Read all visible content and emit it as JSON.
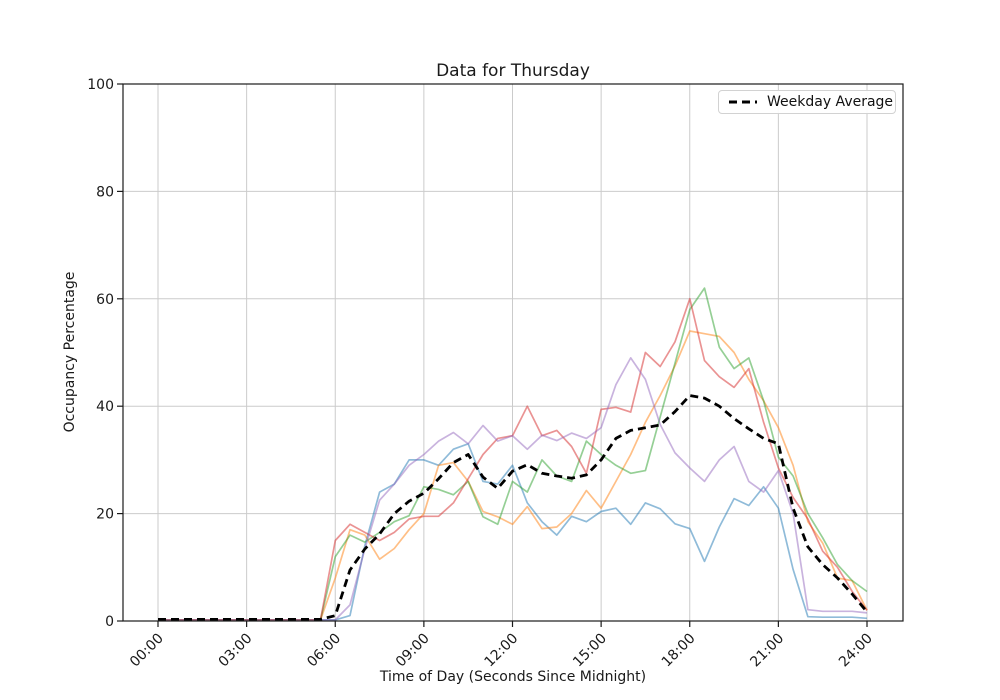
{
  "figure": {
    "title": "Data for Thursday",
    "x_axis": {
      "label": "Time of Day (Seconds Since Midnight)",
      "tick_hours": [
        0,
        3,
        6,
        9,
        12,
        15,
        18,
        21,
        24
      ],
      "tick_labels": [
        "00:00",
        "03:00",
        "06:00",
        "09:00",
        "12:00",
        "15:00",
        "18:00",
        "21:00",
        "24:00"
      ],
      "tick_rotation_deg": 45
    },
    "y_axis": {
      "label": "Occupancy Percentage",
      "ticks": [
        0,
        20,
        40,
        60,
        80,
        100
      ],
      "range": [
        0,
        100
      ]
    },
    "legend": {
      "entries": [
        {
          "label": "Weekday Average",
          "line_style": "dashed",
          "color": "#000000"
        }
      ],
      "position": "upper right"
    },
    "style_colors": {
      "grid": "#cbcbcb",
      "spine": "#1a1a1a",
      "background": "#ffffff"
    }
  },
  "chart_data": {
    "type": "line",
    "title": "Data for Thursday",
    "xlabel": "Time of Day (Seconds Since Midnight)",
    "ylabel": "Occupancy Percentage",
    "xlim_hours": [
      0,
      24
    ],
    "ylim": [
      0,
      100
    ],
    "grid": true,
    "legend_position": "upper right",
    "sample_interval_minutes": 30,
    "x_hours": [
      0,
      0.5,
      1,
      1.5,
      2,
      2.5,
      3,
      3.5,
      4,
      4.5,
      5,
      5.5,
      6,
      6.5,
      7,
      7.5,
      8,
      8.5,
      9,
      9.5,
      10,
      10.5,
      11,
      11.5,
      12,
      12.5,
      13,
      13.5,
      14,
      14.5,
      15,
      15.5,
      16,
      16.5,
      17,
      17.5,
      18,
      18.5,
      19,
      19.5,
      20,
      20.5,
      21,
      21.5,
      22,
      22.5,
      23,
      23.5,
      24
    ],
    "series": [
      {
        "name": "unlabeled-day-blue",
        "color": "#1f77b4",
        "opacity": 0.5,
        "dash": "solid",
        "width": 1.7,
        "values": [
          0.2,
          0.2,
          0.2,
          0.2,
          0.2,
          0.2,
          0.2,
          0.2,
          0.2,
          0.2,
          0.2,
          0.2,
          0.2,
          1,
          14,
          24,
          25.5,
          30,
          30,
          29,
          32,
          33,
          26,
          25.5,
          29,
          22,
          18.5,
          16,
          19.5,
          18.5,
          20.4,
          21,
          18,
          22,
          20.9,
          18.1,
          17.2,
          11.1,
          17.5,
          22.8,
          21.5,
          25,
          21,
          9.6,
          0.8,
          0.7,
          0.7,
          0.7,
          0.5
        ]
      },
      {
        "name": "unlabeled-day-orange",
        "color": "#ff7f0e",
        "opacity": 0.5,
        "dash": "solid",
        "width": 1.7,
        "values": [
          0.2,
          0.2,
          0.2,
          0.2,
          0.2,
          0.2,
          0.2,
          0.2,
          0.2,
          0.2,
          0.2,
          0.2,
          8,
          17,
          16,
          11.5,
          13.5,
          17,
          20,
          29,
          29.5,
          26,
          20.4,
          19.4,
          18,
          21.3,
          17.2,
          17.5,
          20,
          24.3,
          21,
          26,
          31,
          37,
          42,
          47.5,
          54,
          53.5,
          53,
          50,
          45,
          41,
          36,
          29,
          18.5,
          14.5,
          8,
          7.5,
          2
        ]
      },
      {
        "name": "unlabeled-day-green",
        "color": "#2ca02c",
        "opacity": 0.5,
        "dash": "solid",
        "width": 1.7,
        "values": [
          0.2,
          0.2,
          0.2,
          0.2,
          0.2,
          0.2,
          0.2,
          0.2,
          0.2,
          0.2,
          0.2,
          0.2,
          12,
          16,
          14.7,
          16.5,
          18.5,
          19.6,
          25,
          24.5,
          23.5,
          26,
          19.4,
          18,
          26,
          24,
          30,
          27,
          26,
          33.5,
          31,
          29,
          27.5,
          28,
          38,
          48,
          58,
          62,
          51,
          47,
          49,
          41,
          30.5,
          27,
          20,
          15.5,
          10.5,
          7.5,
          5.5
        ]
      },
      {
        "name": "unlabeled-day-red",
        "color": "#d62728",
        "opacity": 0.5,
        "dash": "solid",
        "width": 1.7,
        "values": [
          0.2,
          0.2,
          0.2,
          0.2,
          0.2,
          0.2,
          0.2,
          0.2,
          0.2,
          0.2,
          0.2,
          0.2,
          15,
          18,
          16.5,
          15,
          16.5,
          19,
          19.5,
          19.5,
          22,
          26.5,
          31,
          34,
          34.5,
          40,
          34.5,
          35.5,
          32.5,
          27.5,
          39.4,
          39.8,
          38.9,
          50,
          47.4,
          52,
          60,
          48.5,
          45.5,
          43.5,
          47,
          37,
          28.5,
          23,
          19,
          13,
          10,
          5.5,
          2
        ]
      },
      {
        "name": "unlabeled-day-purple",
        "color": "#9467bd",
        "opacity": 0.5,
        "dash": "solid",
        "width": 1.7,
        "values": [
          0.2,
          0.2,
          0.2,
          0.2,
          0.2,
          0.2,
          0.2,
          0.2,
          0.2,
          0.2,
          0.2,
          0.2,
          0.2,
          3,
          13.4,
          22.5,
          25.5,
          29,
          31,
          33.5,
          35.1,
          33,
          36.4,
          33.5,
          34.5,
          32,
          34.6,
          33.6,
          35,
          34,
          36,
          44,
          49,
          45,
          36.6,
          31.3,
          28.5,
          26,
          30,
          32.5,
          26,
          24,
          28,
          20,
          2.1,
          1.8,
          1.8,
          1.8,
          1.5
        ]
      },
      {
        "name": "Weekday Average",
        "color": "#000000",
        "opacity": 1,
        "dash": "dashed",
        "width": 2.8,
        "values": [
          0.3,
          0.3,
          0.3,
          0.3,
          0.3,
          0.3,
          0.3,
          0.3,
          0.3,
          0.3,
          0.3,
          0.3,
          1,
          9.5,
          13.4,
          16.2,
          20,
          22.3,
          23.8,
          26.5,
          29.5,
          31,
          26.8,
          24.7,
          27.9,
          29.1,
          27.5,
          27,
          26.6,
          27.2,
          30,
          34,
          35.5,
          36,
          36.5,
          39,
          42,
          41.5,
          40,
          37.7,
          35.8,
          34,
          33,
          21,
          13.8,
          10.5,
          8,
          5,
          1.7
        ]
      }
    ]
  }
}
